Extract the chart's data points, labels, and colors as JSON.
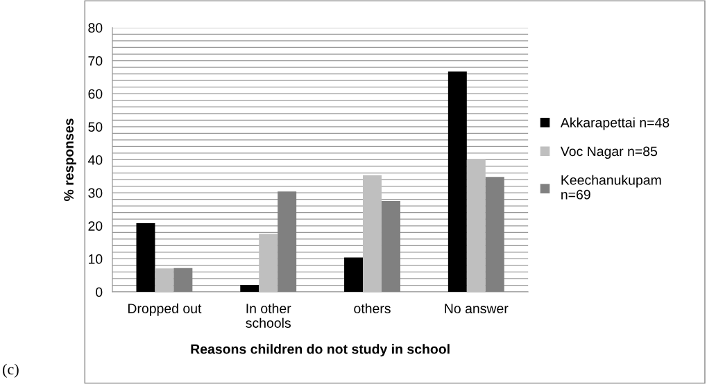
{
  "chart_data": {
    "type": "bar",
    "xlabel": "Reasons children do not study in school",
    "ylabel": "% responses",
    "categories": [
      "Dropped out",
      "In other\nschools",
      "others",
      "No answer"
    ],
    "series": [
      {
        "name": "Akkarapettai n=48",
        "color": "#000000",
        "values": [
          20.8,
          2.1,
          10.4,
          66.7
        ]
      },
      {
        "name": "Voc Nagar n=85",
        "color": "#bfbfbf",
        "values": [
          7.1,
          17.6,
          35.3,
          40.0
        ]
      },
      {
        "name": "Keechanukupam\nn=69",
        "color": "#808080",
        "values": [
          7.2,
          30.4,
          27.5,
          34.8
        ]
      }
    ],
    "ylim": [
      0,
      80
    ],
    "yticks": [
      0,
      {
        "value": 2,
        "label": null
      },
      {
        "value": 4,
        "label": null
      },
      {
        "value": 6,
        "label": null
      },
      {
        "value": 8,
        "label": null
      },
      10,
      {
        "value": 12,
        "label": null
      },
      {
        "value": 14,
        "label": null
      },
      {
        "value": 16,
        "label": null
      },
      {
        "value": 18,
        "label": null
      },
      20,
      {
        "value": 22,
        "label": null
      },
      {
        "value": 24,
        "label": null
      },
      {
        "value": 26,
        "label": null
      },
      {
        "value": 28,
        "label": null
      },
      30,
      {
        "value": 32,
        "label": null
      },
      {
        "value": 34,
        "label": null
      },
      {
        "value": 36,
        "label": null
      },
      {
        "value": 38,
        "label": null
      },
      40,
      {
        "value": 42,
        "label": null
      },
      {
        "value": 44,
        "label": null
      },
      {
        "value": 46,
        "label": null
      },
      {
        "value": 48,
        "label": null
      },
      50,
      {
        "value": 52,
        "label": null
      },
      {
        "value": 54,
        "label": null
      },
      {
        "value": 56,
        "label": null
      },
      {
        "value": 58,
        "label": null
      },
      60,
      {
        "value": 62,
        "label": null
      },
      {
        "value": 64,
        "label": null
      },
      {
        "value": 66,
        "label": null
      },
      {
        "value": 68,
        "label": null
      },
      70,
      {
        "value": 72,
        "label": null
      },
      {
        "value": 74,
        "label": null
      },
      {
        "value": 76,
        "label": null
      },
      {
        "value": 78,
        "label": null
      },
      80
    ],
    "grid": "y",
    "legend": "right",
    "annotations": [
      "(c)"
    ]
  }
}
